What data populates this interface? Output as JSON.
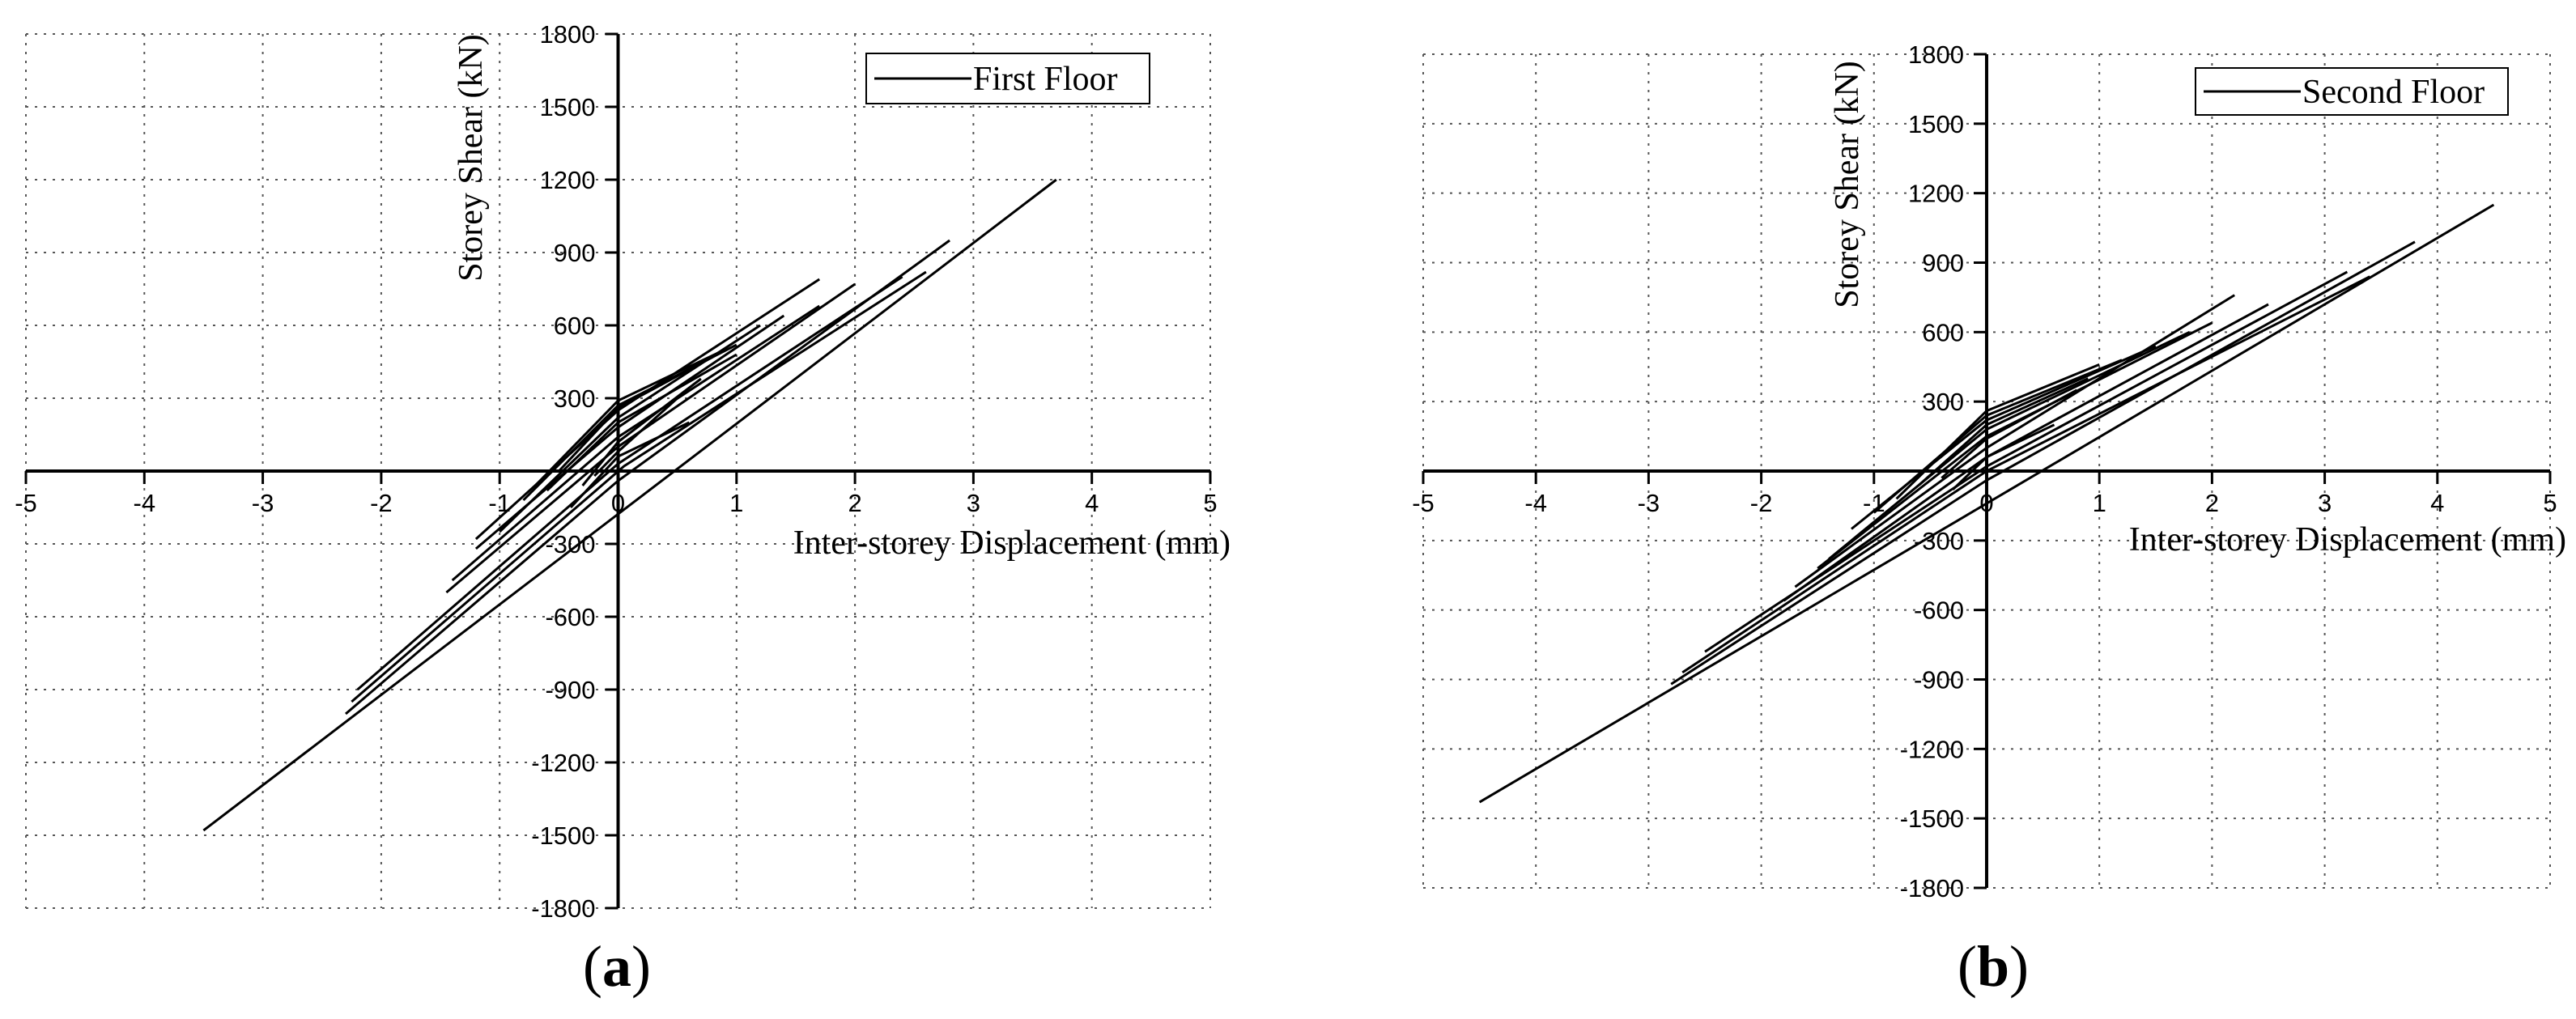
{
  "chart_data": [
    {
      "type": "line",
      "panel_label": "a",
      "xlabel": "Inter-storey Displacement (mm)",
      "ylabel": "Storey Shear (kN)",
      "xlim": [
        -5,
        5
      ],
      "ylim": [
        -1800,
        1800
      ],
      "x_ticks": [
        -5,
        -4,
        -3,
        -2,
        -1,
        0,
        1,
        2,
        3,
        4,
        5
      ],
      "y_ticks": [
        -1800,
        -1500,
        -1200,
        -900,
        -600,
        -300,
        300,
        600,
        900,
        1200,
        1500,
        1800
      ],
      "grid": true,
      "legend_position": "top-right",
      "series": [
        {
          "name": "First Floor",
          "color": "#000000",
          "segments": [
            [
              [
                -3.5,
                -1480
              ],
              [
                3.7,
                1200
              ]
            ],
            [
              [
                -2.3,
                -1000
              ],
              [
                0.0,
                -40
              ],
              [
                2.8,
                950
              ]
            ],
            [
              [
                -2.25,
                -950
              ],
              [
                0.05,
                20
              ],
              [
                2.6,
                820
              ]
            ],
            [
              [
                -2.2,
                -900
              ],
              [
                0.0,
                30
              ],
              [
                2.4,
                800
              ]
            ],
            [
              [
                -1.45,
                -500
              ],
              [
                0.0,
                100
              ],
              [
                2.0,
                770
              ]
            ],
            [
              [
                -1.4,
                -450
              ],
              [
                0.0,
                140
              ],
              [
                1.7,
                680
              ]
            ],
            [
              [
                -1.2,
                -320
              ],
              [
                0.0,
                180
              ],
              [
                1.4,
                640
              ]
            ],
            [
              [
                -1.0,
                -250
              ],
              [
                0.0,
                220
              ],
              [
                1.2,
                600
              ]
            ],
            [
              [
                -1.2,
                -280
              ],
              [
                0.0,
                250
              ],
              [
                1.7,
                790
              ]
            ],
            [
              [
                -0.8,
                -120
              ],
              [
                0.0,
                270
              ],
              [
                1.0,
                520
              ]
            ],
            [
              [
                -0.7,
                -60
              ],
              [
                0.0,
                290
              ],
              [
                0.9,
                500
              ]
            ],
            [
              [
                -0.5,
                0
              ],
              [
                0.0,
                260
              ],
              [
                0.8,
                470
              ]
            ],
            [
              [
                -0.6,
                -80
              ],
              [
                0.0,
                200
              ],
              [
                1.0,
                480
              ]
            ],
            [
              [
                -0.3,
                -60
              ],
              [
                0.0,
                120
              ],
              [
                0.7,
                380
              ]
            ],
            [
              [
                -0.2,
                -20
              ],
              [
                0.0,
                80
              ],
              [
                0.5,
                300
              ]
            ],
            [
              [
                -0.4,
                -150
              ],
              [
                0.0,
                60
              ],
              [
                0.6,
                200
              ]
            ]
          ]
        }
      ]
    },
    {
      "type": "line",
      "panel_label": "b",
      "xlabel": "Inter-storey Displacement (mm)",
      "ylabel": "Storey Shear (kN)",
      "xlim": [
        -5,
        5
      ],
      "ylim": [
        -1800,
        1800
      ],
      "x_ticks": [
        -5,
        -4,
        -3,
        -2,
        -1,
        0,
        1,
        2,
        3,
        4,
        5
      ],
      "y_ticks": [
        -1800,
        -1500,
        -1200,
        -900,
        -600,
        -300,
        300,
        600,
        900,
        1200,
        1500,
        1800
      ],
      "grid": true,
      "legend_position": "top-right",
      "series": [
        {
          "name": "Second Floor",
          "color": "#000000",
          "segments": [
            [
              [
                -4.5,
                -1430
              ],
              [
                4.5,
                1150
              ]
            ],
            [
              [
                -2.8,
                -920
              ],
              [
                0.0,
                -40
              ],
              [
                3.8,
                990
              ]
            ],
            [
              [
                -2.7,
                -870
              ],
              [
                0.0,
                0
              ],
              [
                3.4,
                840
              ]
            ],
            [
              [
                -2.5,
                -780
              ],
              [
                0.0,
                20
              ],
              [
                3.2,
                860
              ]
            ],
            [
              [
                -1.8,
                -560
              ],
              [
                0.0,
                60
              ],
              [
                2.5,
                720
              ]
            ],
            [
              [
                -1.7,
                -500
              ],
              [
                0.0,
                100
              ],
              [
                2.2,
                760
              ]
            ],
            [
              [
                -1.5,
                -420
              ],
              [
                0.0,
                150
              ],
              [
                2.0,
                640
              ]
            ],
            [
              [
                -1.4,
                -380
              ],
              [
                0.0,
                180
              ],
              [
                1.8,
                600
              ]
            ],
            [
              [
                -1.2,
                -250
              ],
              [
                0.0,
                220
              ],
              [
                1.5,
                540
              ]
            ],
            [
              [
                -1.0,
                -180
              ],
              [
                0.0,
                240
              ],
              [
                1.2,
                480
              ]
            ],
            [
              [
                -0.8,
                -120
              ],
              [
                0.0,
                260
              ],
              [
                1.0,
                460
              ]
            ],
            [
              [
                -0.6,
                -60
              ],
              [
                0.0,
                200
              ],
              [
                0.9,
                400
              ]
            ],
            [
              [
                -0.4,
                -30
              ],
              [
                0.0,
                140
              ],
              [
                0.8,
                350
              ]
            ],
            [
              [
                -0.3,
                -80
              ],
              [
                0.0,
                60
              ],
              [
                0.6,
                200
              ]
            ]
          ]
        }
      ]
    }
  ]
}
